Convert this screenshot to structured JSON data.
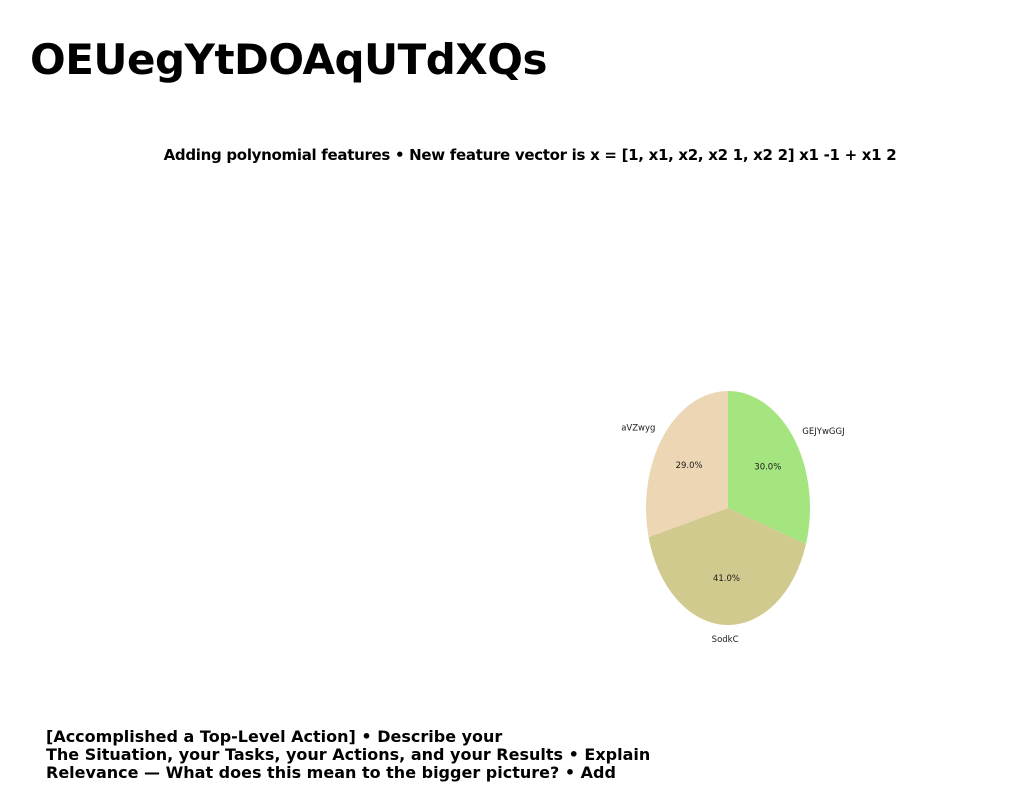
{
  "page": {
    "title": "OEUegYtDOAqUTdXQs",
    "subtitle": "Adding polynomial features • New feature vector is x = [1, x1, x2, x2 1, x2 2] x1 -1 + x1 2",
    "body_lines": [
      "[Accomplished a Top-Level Action] • Describe your",
      "The Situation, your Tasks, your Actions, and your Results • Explain",
      "Relevance — What does this mean to the bigger picture? • Add"
    ]
  },
  "chart_data": {
    "type": "pie",
    "title": "",
    "start_angle_deg": 90,
    "direction": "clockwise",
    "slices": [
      {
        "label": "GEJYwGGJ",
        "value": 30.0,
        "pct_label": "30.0%",
        "color": "#a5e57f"
      },
      {
        "label": "SodkC",
        "value": 41.0,
        "pct_label": "41.0%",
        "color": "#d0ca8e"
      },
      {
        "label": "aVZwyg",
        "value": 29.0,
        "pct_label": "29.0%",
        "color": "#edd6b4"
      }
    ]
  }
}
